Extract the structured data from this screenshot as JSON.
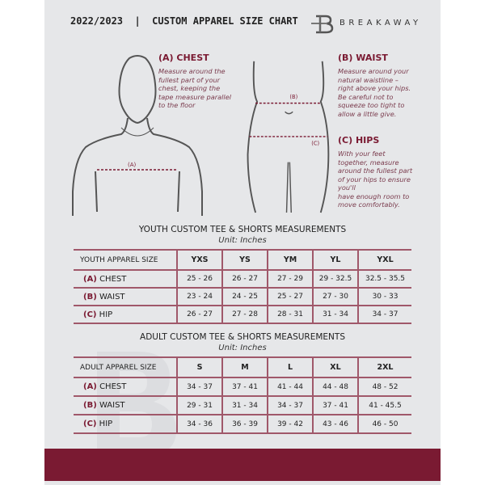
{
  "header": {
    "title": "2022/2023  |  CUSTOM APPAREL SIZE CHART",
    "brand": "BREAKAWAY",
    "logo_letter": "B"
  },
  "colors": {
    "accent": "#7a1a32",
    "background": "#e6e7e9"
  },
  "measurements": {
    "chest": {
      "title": "(A) CHEST",
      "marker": "(A)",
      "description": [
        "Measure around the",
        "fullest part of your",
        "chest, keeping the",
        "tape measure parallel",
        "to the floor"
      ]
    },
    "waist": {
      "title": "(B) WAIST",
      "marker": "(B)",
      "description": [
        "Measure around your",
        "natural waistline –",
        "right above your hips.",
        "Be careful not to",
        "squeeze too tight to",
        "allow a little give."
      ]
    },
    "hips": {
      "title": "(C) HIPS",
      "marker": "(C)",
      "description": [
        "With your feet",
        "together, measure",
        "around the fullest part",
        "of your hips to ensure",
        "you'll",
        "have enough room to",
        "move comfortably."
      ]
    }
  },
  "youth": {
    "title": "YOUTH CUSTOM TEE & SHORTS MEASUREMENTS",
    "unit": "Unit: Inches",
    "header": [
      "YOUTH APPAREL SIZE",
      "YXS",
      "YS",
      "YM",
      "YL",
      "YXL"
    ],
    "rows": [
      {
        "tag": "(A)",
        "label": "CHEST",
        "values": [
          "25 - 26",
          "26 - 27",
          "27 - 29",
          "29 - 32.5",
          "32.5 - 35.5"
        ]
      },
      {
        "tag": "(B)",
        "label": "WAIST",
        "values": [
          "23 - 24",
          "24 - 25",
          "25 - 27",
          "27 - 30",
          "30 - 33"
        ]
      },
      {
        "tag": "(C)",
        "label": "HIP",
        "values": [
          "26 - 27",
          "27 - 28",
          "28 - 31",
          "31 - 34",
          "34 - 37"
        ]
      }
    ]
  },
  "adult": {
    "title": "ADULT CUSTOM TEE & SHORTS MEASUREMENTS",
    "unit": "Unit: Inches",
    "header": [
      "ADULT APPAREL SIZE",
      "S",
      "M",
      "L",
      "XL",
      "2XL"
    ],
    "rows": [
      {
        "tag": "(A)",
        "label": "CHEST",
        "values": [
          "34 - 37",
          "37 - 41",
          "41 - 44",
          "44 - 48",
          "48 - 52"
        ]
      },
      {
        "tag": "(B)",
        "label": "WAIST",
        "values": [
          "29 - 31",
          "31 - 34",
          "34 - 37",
          "37 - 41",
          "41 - 45.5"
        ]
      },
      {
        "tag": "(C)",
        "label": "HIP",
        "values": [
          "34 - 36",
          "36 - 39",
          "39 - 42",
          "43 - 46",
          "46 - 50"
        ]
      }
    ]
  }
}
